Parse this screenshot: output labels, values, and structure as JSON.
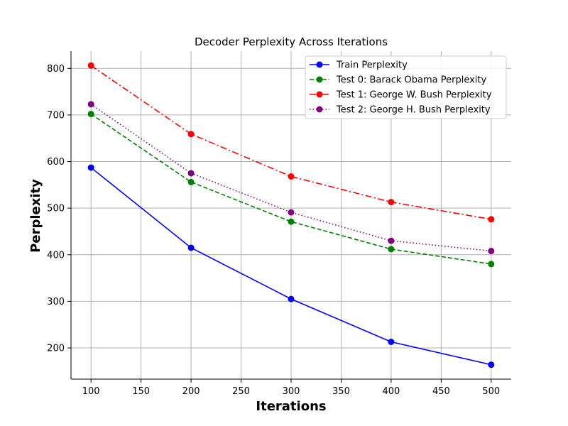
{
  "chart_data": {
    "type": "line",
    "title": "Decoder Perplexity Across Iterations",
    "xlabel": "Iterations",
    "ylabel": "Perplexity",
    "x": [
      100,
      200,
      300,
      400,
      500
    ],
    "xlim": [
      80,
      520
    ],
    "ylim": [
      133,
      837
    ],
    "xticks": [
      100,
      150,
      200,
      250,
      300,
      350,
      400,
      450,
      500
    ],
    "yticks": [
      200,
      300,
      400,
      500,
      600,
      700,
      800
    ],
    "grid": true,
    "legend_position": "top-right",
    "series": [
      {
        "name": "Train Perplexity",
        "values": [
          587,
          415,
          305,
          213,
          164
        ],
        "color": "#0000ff",
        "line_style": "solid",
        "marker": "circle"
      },
      {
        "name": "Test 0: Barack Obama Perplexity",
        "values": [
          702,
          556,
          471,
          412,
          380
        ],
        "color": "#008000",
        "line_style": "dashed",
        "marker": "circle"
      },
      {
        "name": "Test 1: George W. Bush Perplexity",
        "values": [
          806,
          659,
          568,
          513,
          476
        ],
        "color": "#ff0000",
        "line_style": "dashdot",
        "marker": "circle"
      },
      {
        "name": "Test 2: George H. Bush Perplexity",
        "values": [
          723,
          575,
          491,
          430,
          408
        ],
        "color": "#800080",
        "line_style": "dotted",
        "marker": "circle"
      }
    ]
  }
}
